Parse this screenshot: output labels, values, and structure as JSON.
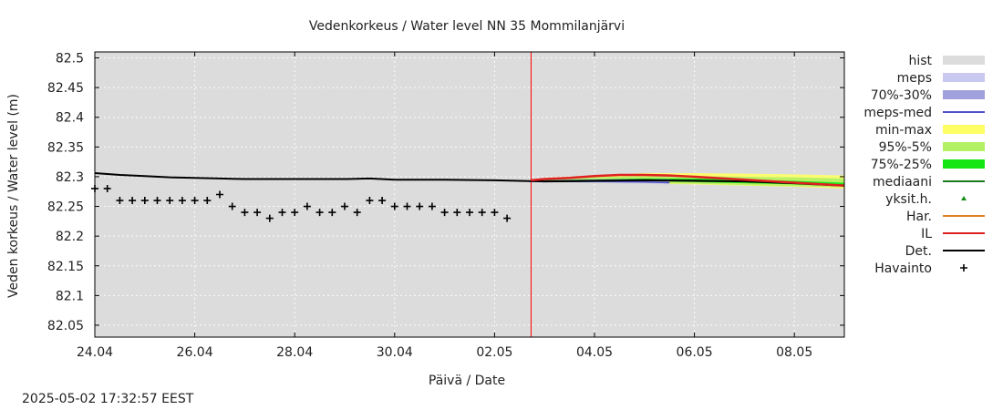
{
  "chart_data": {
    "type": "line",
    "title": "Vedenkorkeus / Water level   NN 35 Mommilanjärvi",
    "xlabel": "Päivä / Date",
    "ylabel": "Veden korkeus / Water level (m)",
    "ylim": [
      82.03,
      82.51
    ],
    "xlim": [
      "2025-04-24",
      "2025-05-09"
    ],
    "y_ticks": [
      "82.5",
      "82.45",
      "82.4",
      "82.35",
      "82.3",
      "82.25",
      "82.2",
      "82.15",
      "82.1",
      "82.05"
    ],
    "x_ticks": [
      {
        "date": "2025-04-24",
        "label": "24.04"
      },
      {
        "date": "2025-04-26",
        "label": "26.04"
      },
      {
        "date": "2025-04-28",
        "label": "28.04"
      },
      {
        "date": "2025-04-30",
        "label": "30.04"
      },
      {
        "date": "2025-05-02",
        "label": "02.05"
      },
      {
        "date": "2025-05-04",
        "label": "04.05"
      },
      {
        "date": "2025-05-06",
        "label": "06.05"
      },
      {
        "date": "2025-05-08",
        "label": "08.05"
      }
    ],
    "grid": true,
    "legend_position": "right",
    "forecast_start": "2025-05-02 17:32",
    "legend": [
      {
        "label": "hist",
        "kind": "box",
        "color": "#dcdcdc"
      },
      {
        "label": "meps",
        "kind": "box",
        "color": "#c8c8f0"
      },
      {
        "label": "70%-30%",
        "kind": "box",
        "color": "#a0a0dc"
      },
      {
        "label": "meps-med",
        "kind": "line",
        "color": "#5050c8"
      },
      {
        "label": "min-max",
        "kind": "box",
        "color": "#ffff66"
      },
      {
        "label": "95%-5%",
        "kind": "box",
        "color": "#b4f064"
      },
      {
        "label": "75%-25%",
        "kind": "box",
        "color": "#14e614"
      },
      {
        "label": "mediaani",
        "kind": "line",
        "color": "#1e7a1e"
      },
      {
        "label": "yksit.h.",
        "kind": "dot",
        "color": "#1a8c1a"
      },
      {
        "label": "Har.",
        "kind": "line",
        "color": "#e08020"
      },
      {
        "label": "IL",
        "kind": "line",
        "color": "#e02020"
      },
      {
        "label": "Det.",
        "kind": "line",
        "color": "#000000"
      },
      {
        "label": "Havainto",
        "kind": "plus",
        "color": "#000000"
      }
    ],
    "series": [
      {
        "name": "Havainto",
        "kind": "points",
        "x": [
          "2025-04-24 00:00",
          "2025-04-24 06:00",
          "2025-04-24 12:00",
          "2025-04-24 18:00",
          "2025-04-25 00:00",
          "2025-04-25 06:00",
          "2025-04-25 12:00",
          "2025-04-25 18:00",
          "2025-04-26 00:00",
          "2025-04-26 06:00",
          "2025-04-26 12:00",
          "2025-04-26 18:00",
          "2025-04-27 00:00",
          "2025-04-27 06:00",
          "2025-04-27 12:00",
          "2025-04-27 18:00",
          "2025-04-28 00:00",
          "2025-04-28 06:00",
          "2025-04-28 12:00",
          "2025-04-28 18:00",
          "2025-04-29 00:00",
          "2025-04-29 06:00",
          "2025-04-29 12:00",
          "2025-04-29 18:00",
          "2025-04-30 00:00",
          "2025-04-30 06:00",
          "2025-04-30 12:00",
          "2025-04-30 18:00",
          "2025-05-01 00:00",
          "2025-05-01 06:00",
          "2025-05-01 12:00",
          "2025-05-01 18:00",
          "2025-05-02 00:00",
          "2025-05-02 06:00"
        ],
        "values": [
          82.28,
          82.28,
          82.26,
          82.26,
          82.26,
          82.26,
          82.26,
          82.26,
          82.26,
          82.26,
          82.27,
          82.25,
          82.24,
          82.24,
          82.23,
          82.24,
          82.24,
          82.25,
          82.24,
          82.24,
          82.25,
          82.24,
          82.26,
          82.26,
          82.25,
          82.25,
          82.25,
          82.25,
          82.24,
          82.24,
          82.24,
          82.24,
          82.24,
          82.23
        ]
      },
      {
        "name": "Det.",
        "kind": "line",
        "x": [
          "2025-04-24 00:00",
          "2025-04-24 12:00",
          "2025-04-25 00:00",
          "2025-04-25 12:00",
          "2025-04-26 00:00",
          "2025-04-26 12:00",
          "2025-04-27 00:00",
          "2025-04-28 00:00",
          "2025-04-29 00:00",
          "2025-04-29 12:00",
          "2025-04-30 00:00",
          "2025-05-01 00:00",
          "2025-05-02 00:00",
          "2025-05-02 12:00",
          "2025-05-03 00:00",
          "2025-05-04 00:00",
          "2025-05-05 00:00",
          "2025-05-06 00:00",
          "2025-05-07 00:00",
          "2025-05-08 00:00",
          "2025-05-09 00:00"
        ],
        "values": [
          82.306,
          82.303,
          82.301,
          82.299,
          82.298,
          82.297,
          82.296,
          82.296,
          82.296,
          82.297,
          82.295,
          82.295,
          82.294,
          82.293,
          82.292,
          82.293,
          82.294,
          82.293,
          82.292,
          82.289,
          82.285
        ]
      },
      {
        "name": "min-max",
        "kind": "band",
        "x": [
          "2025-05-02 17:32",
          "2025-05-03 00:00",
          "2025-05-04 00:00",
          "2025-05-05 00:00",
          "2025-05-06 00:00",
          "2025-05-07 00:00",
          "2025-05-08 00:00",
          "2025-05-09 00:00"
        ],
        "low": [
          82.292,
          82.29,
          82.289,
          82.288,
          82.287,
          82.285,
          82.283,
          82.28
        ],
        "high": [
          82.294,
          82.298,
          82.302,
          82.306,
          82.306,
          82.305,
          82.304,
          82.302
        ]
      },
      {
        "name": "95%-5%",
        "kind": "band",
        "x": [
          "2025-05-02 17:32",
          "2025-05-03 00:00",
          "2025-05-04 00:00",
          "2025-05-05 00:00",
          "2025-05-06 00:00",
          "2025-05-07 00:00",
          "2025-05-08 00:00",
          "2025-05-09 00:00"
        ],
        "low": [
          82.292,
          82.291,
          82.29,
          82.289,
          82.288,
          82.286,
          82.284,
          82.282
        ],
        "high": [
          82.294,
          82.296,
          82.299,
          82.301,
          82.301,
          82.3,
          82.299,
          82.297
        ]
      },
      {
        "name": "75%-25%",
        "kind": "band",
        "x": [
          "2025-05-02 17:32",
          "2025-05-03 00:00",
          "2025-05-04 00:00",
          "2025-05-05 00:00",
          "2025-05-06 00:00",
          "2025-05-07 00:00",
          "2025-05-08 00:00",
          "2025-05-09 00:00"
        ],
        "low": [
          82.292,
          82.292,
          82.292,
          82.292,
          82.291,
          82.289,
          82.287,
          82.284
        ],
        "high": [
          82.294,
          82.294,
          82.296,
          82.297,
          82.297,
          82.295,
          82.293,
          82.29
        ]
      },
      {
        "name": "meps",
        "kind": "band",
        "x": [
          "2025-05-02 17:32",
          "2025-05-03 00:00",
          "2025-05-04 00:00",
          "2025-05-05 00:00",
          "2025-05-05 12:00"
        ],
        "low": [
          82.291,
          82.29,
          82.289,
          82.288,
          82.287
        ],
        "high": [
          82.294,
          82.295,
          82.296,
          82.296,
          82.296
        ]
      },
      {
        "name": "meps-med",
        "kind": "line",
        "x": [
          "2025-05-02 17:32",
          "2025-05-03 00:00",
          "2025-05-04 00:00",
          "2025-05-05 00:00",
          "2025-05-05 12:00"
        ],
        "values": [
          82.292,
          82.292,
          82.292,
          82.291,
          82.29
        ]
      },
      {
        "name": "IL",
        "kind": "line",
        "x": [
          "2025-05-02 17:32",
          "2025-05-03 00:00",
          "2025-05-03 12:00",
          "2025-05-04 00:00",
          "2025-05-04 12:00",
          "2025-05-05 00:00",
          "2025-05-05 12:00",
          "2025-05-06 00:00",
          "2025-05-07 00:00",
          "2025-05-08 00:00",
          "2025-05-09 00:00"
        ],
        "values": [
          82.294,
          82.296,
          82.298,
          82.301,
          82.303,
          82.303,
          82.302,
          82.3,
          82.295,
          82.29,
          82.285
        ]
      },
      {
        "name": "mediaani",
        "kind": "line",
        "x": [
          "2025-05-02 17:32",
          "2025-05-03 00:00",
          "2025-05-04 00:00",
          "2025-05-05 00:00",
          "2025-05-06 00:00",
          "2025-05-07 00:00",
          "2025-05-08 00:00",
          "2025-05-09 00:00"
        ],
        "values": [
          82.293,
          82.293,
          82.294,
          82.295,
          82.294,
          82.292,
          82.289,
          82.286
        ]
      }
    ]
  },
  "timestamp": "2025-05-02 17:32:57 EEST"
}
